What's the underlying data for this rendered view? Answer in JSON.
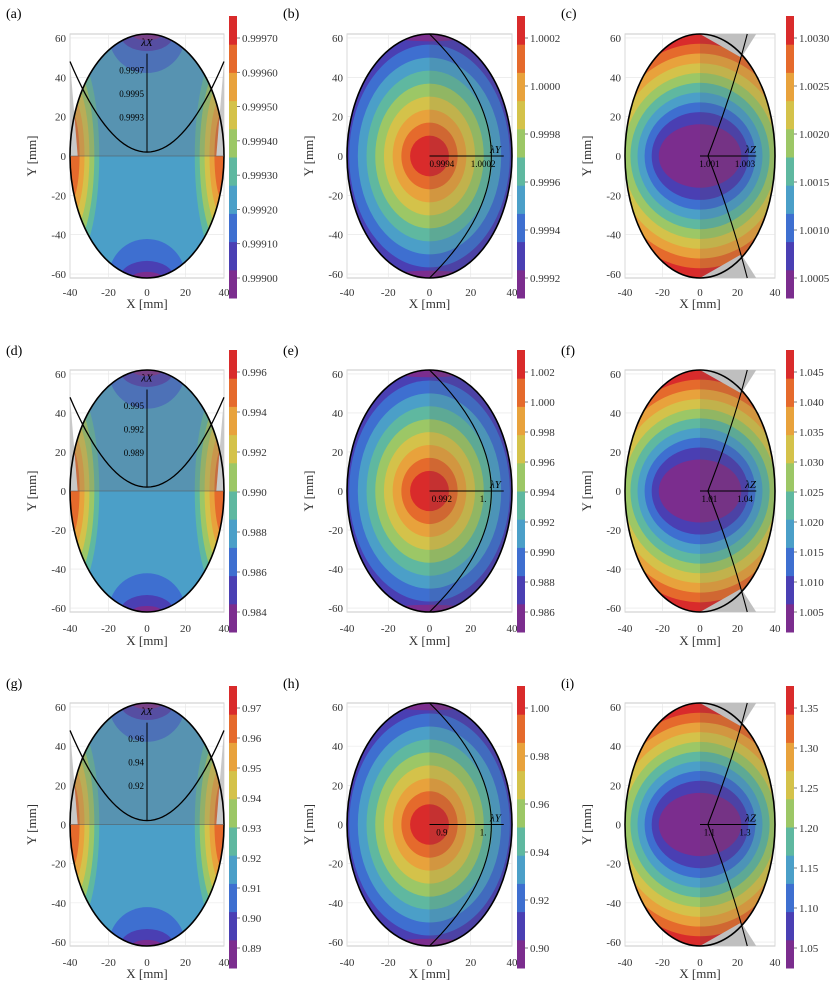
{
  "chart_data": [
    {
      "panel": "(a)",
      "type": "heatmap",
      "component": "X",
      "xlabel": "X [mm]",
      "ylabel": "Y [mm]",
      "xticks": [
        -40,
        -20,
        0,
        20,
        40
      ],
      "yticks": [
        -60,
        -40,
        -20,
        0,
        20,
        40,
        60
      ],
      "xlim": [
        -40,
        40
      ],
      "ylim": [
        -62,
        62
      ],
      "colorbar_ticks": [
        "0.99970",
        "0.99960",
        "0.99950",
        "0.99940",
        "0.99930",
        "0.99920",
        "0.99910",
        "0.99900"
      ],
      "annotations": [
        "0.9997",
        "0.9995",
        "0.9993"
      ],
      "lambda_label": "λX"
    },
    {
      "panel": "(b)",
      "type": "heatmap",
      "component": "Y",
      "xlabel": "X [mm]",
      "ylabel": "Y [mm]",
      "xticks": [
        -40,
        -20,
        0,
        20,
        40
      ],
      "yticks": [
        -60,
        -40,
        -20,
        0,
        20,
        40,
        60
      ],
      "xlim": [
        -40,
        40
      ],
      "ylim": [
        -62,
        62
      ],
      "colorbar_ticks": [
        "1.0002",
        "1.0000",
        "0.9998",
        "0.9996",
        "0.9994",
        "0.9992"
      ],
      "annotations": [
        "0.9994",
        "1.0002"
      ],
      "lambda_label": "λY"
    },
    {
      "panel": "(c)",
      "type": "heatmap",
      "component": "Z",
      "xlabel": "X [mm]",
      "ylabel": "Y [mm]",
      "xticks": [
        -40,
        -20,
        0,
        20,
        40
      ],
      "yticks": [
        -60,
        -40,
        -20,
        0,
        20,
        40,
        60
      ],
      "xlim": [
        -40,
        40
      ],
      "ylim": [
        -62,
        62
      ],
      "colorbar_ticks": [
        "1.0030",
        "1.0025",
        "1.0020",
        "1.0015",
        "1.0010",
        "1.0005"
      ],
      "annotations": [
        "1.001",
        "1.003"
      ],
      "lambda_label": "λZ"
    },
    {
      "panel": "(d)",
      "type": "heatmap",
      "component": "X",
      "xlabel": "X [mm]",
      "ylabel": "Y [mm]",
      "xticks": [
        -40,
        -20,
        0,
        20,
        40
      ],
      "yticks": [
        -60,
        -40,
        -20,
        0,
        20,
        40,
        60
      ],
      "xlim": [
        -40,
        40
      ],
      "ylim": [
        -62,
        62
      ],
      "colorbar_ticks": [
        "0.996",
        "0.994",
        "0.992",
        "0.990",
        "0.988",
        "0.986",
        "0.984"
      ],
      "annotations": [
        "0.995",
        "0.992",
        "0.989"
      ],
      "lambda_label": "λX"
    },
    {
      "panel": "(e)",
      "type": "heatmap",
      "component": "Y",
      "xlabel": "X [mm]",
      "ylabel": "Y [mm]",
      "xticks": [
        -40,
        -20,
        0,
        20,
        40
      ],
      "yticks": [
        -60,
        -40,
        -20,
        0,
        20,
        40,
        60
      ],
      "xlim": [
        -40,
        40
      ],
      "ylim": [
        -62,
        62
      ],
      "colorbar_ticks": [
        "1.002",
        "1.000",
        "0.998",
        "0.996",
        "0.994",
        "0.992",
        "0.990",
        "0.988",
        "0.986"
      ],
      "annotations": [
        "0.992",
        "1."
      ],
      "lambda_label": "λY"
    },
    {
      "panel": "(f)",
      "type": "heatmap",
      "component": "Z",
      "xlabel": "X [mm]",
      "ylabel": "Y [mm]",
      "xticks": [
        -40,
        -20,
        0,
        20,
        40
      ],
      "yticks": [
        -60,
        -40,
        -20,
        0,
        20,
        40,
        60
      ],
      "xlim": [
        -40,
        40
      ],
      "ylim": [
        -62,
        62
      ],
      "colorbar_ticks": [
        "1.045",
        "1.040",
        "1.035",
        "1.030",
        "1.025",
        "1.020",
        "1.015",
        "1.010",
        "1.005"
      ],
      "annotations": [
        "1.01",
        "1.04"
      ],
      "lambda_label": "λZ"
    },
    {
      "panel": "(g)",
      "type": "heatmap",
      "component": "X",
      "xlabel": "X [mm]",
      "ylabel": "Y [mm]",
      "xticks": [
        -40,
        -20,
        0,
        20,
        40
      ],
      "yticks": [
        -60,
        -40,
        -20,
        0,
        20,
        40,
        60
      ],
      "xlim": [
        -40,
        40
      ],
      "ylim": [
        -62,
        62
      ],
      "colorbar_ticks": [
        "0.97",
        "0.96",
        "0.95",
        "0.94",
        "0.93",
        "0.92",
        "0.91",
        "0.90",
        "0.89"
      ],
      "annotations": [
        "0.96",
        "0.94",
        "0.92"
      ],
      "lambda_label": "λX"
    },
    {
      "panel": "(h)",
      "type": "heatmap",
      "component": "Y",
      "xlabel": "X [mm]",
      "ylabel": "Y [mm]",
      "xticks": [
        -40,
        -20,
        0,
        20,
        40
      ],
      "yticks": [
        -60,
        -40,
        -20,
        0,
        20,
        40,
        60
      ],
      "xlim": [
        -40,
        40
      ],
      "ylim": [
        -62,
        62
      ],
      "colorbar_ticks": [
        "1.00",
        "0.98",
        "0.96",
        "0.94",
        "0.92",
        "0.90"
      ],
      "annotations": [
        "0.9",
        "1."
      ],
      "lambda_label": "λY"
    },
    {
      "panel": "(i)",
      "type": "heatmap",
      "component": "Z",
      "xlabel": "X [mm]",
      "ylabel": "Y [mm]",
      "xticks": [
        -40,
        -20,
        0,
        20,
        40
      ],
      "yticks": [
        -60,
        -40,
        -20,
        0,
        20,
        40,
        60
      ],
      "xlim": [
        -40,
        40
      ],
      "ylim": [
        -62,
        62
      ],
      "colorbar_ticks": [
        "1.35",
        "1.30",
        "1.25",
        "1.20",
        "1.15",
        "1.10",
        "1.05"
      ],
      "annotations": [
        "1.1",
        "1.3"
      ],
      "lambda_label": "λZ"
    }
  ],
  "colors": {
    "palette": [
      "#7b2d8e",
      "#4a3fb3",
      "#3e6fd0",
      "#4b9fc8",
      "#5fb8a0",
      "#9cc766",
      "#d4c24a",
      "#e8a23c",
      "#e56a2c",
      "#d92b2b"
    ],
    "overlay": "#888888",
    "outline": "#000000"
  }
}
